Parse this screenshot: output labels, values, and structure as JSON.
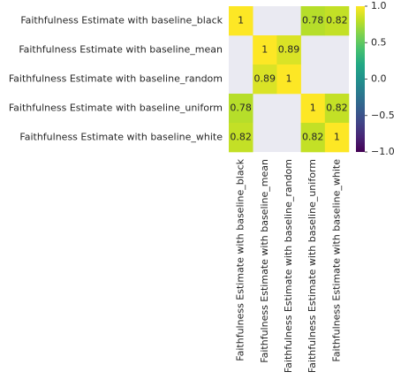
{
  "chart_data": {
    "type": "heatmap",
    "x_categories": [
      "Faithfulness Estimate with baseline_black",
      "Faithfulness Estimate with baseline_mean",
      "Faithfulness Estimate with baseline_random",
      "Faithfulness Estimate with baseline_uniform",
      "Faithfulness Estimate with baseline_white"
    ],
    "y_categories": [
      "Faithfulness Estimate with baseline_black",
      "Faithfulness Estimate with baseline_mean",
      "Faithfulness Estimate with baseline_random",
      "Faithfulness Estimate with baseline_uniform",
      "Faithfulness Estimate with baseline_white"
    ],
    "values": [
      [
        1,
        null,
        null,
        0.78,
        0.82
      ],
      [
        null,
        1,
        0.89,
        null,
        null
      ],
      [
        null,
        0.89,
        1,
        null,
        null
      ],
      [
        0.78,
        null,
        null,
        1,
        0.82
      ],
      [
        0.82,
        null,
        null,
        0.82,
        1
      ]
    ],
    "colormap": "viridis",
    "clim": [
      -1,
      1
    ],
    "colorbar_ticks": [
      {
        "value": 1,
        "label": "1.0"
      },
      {
        "value": 0.5,
        "label": "0.5"
      },
      {
        "value": 0,
        "label": "0.0"
      },
      {
        "value": -0.5,
        "label": "−0.5"
      },
      {
        "value": -1,
        "label": "−1.0"
      }
    ]
  }
}
